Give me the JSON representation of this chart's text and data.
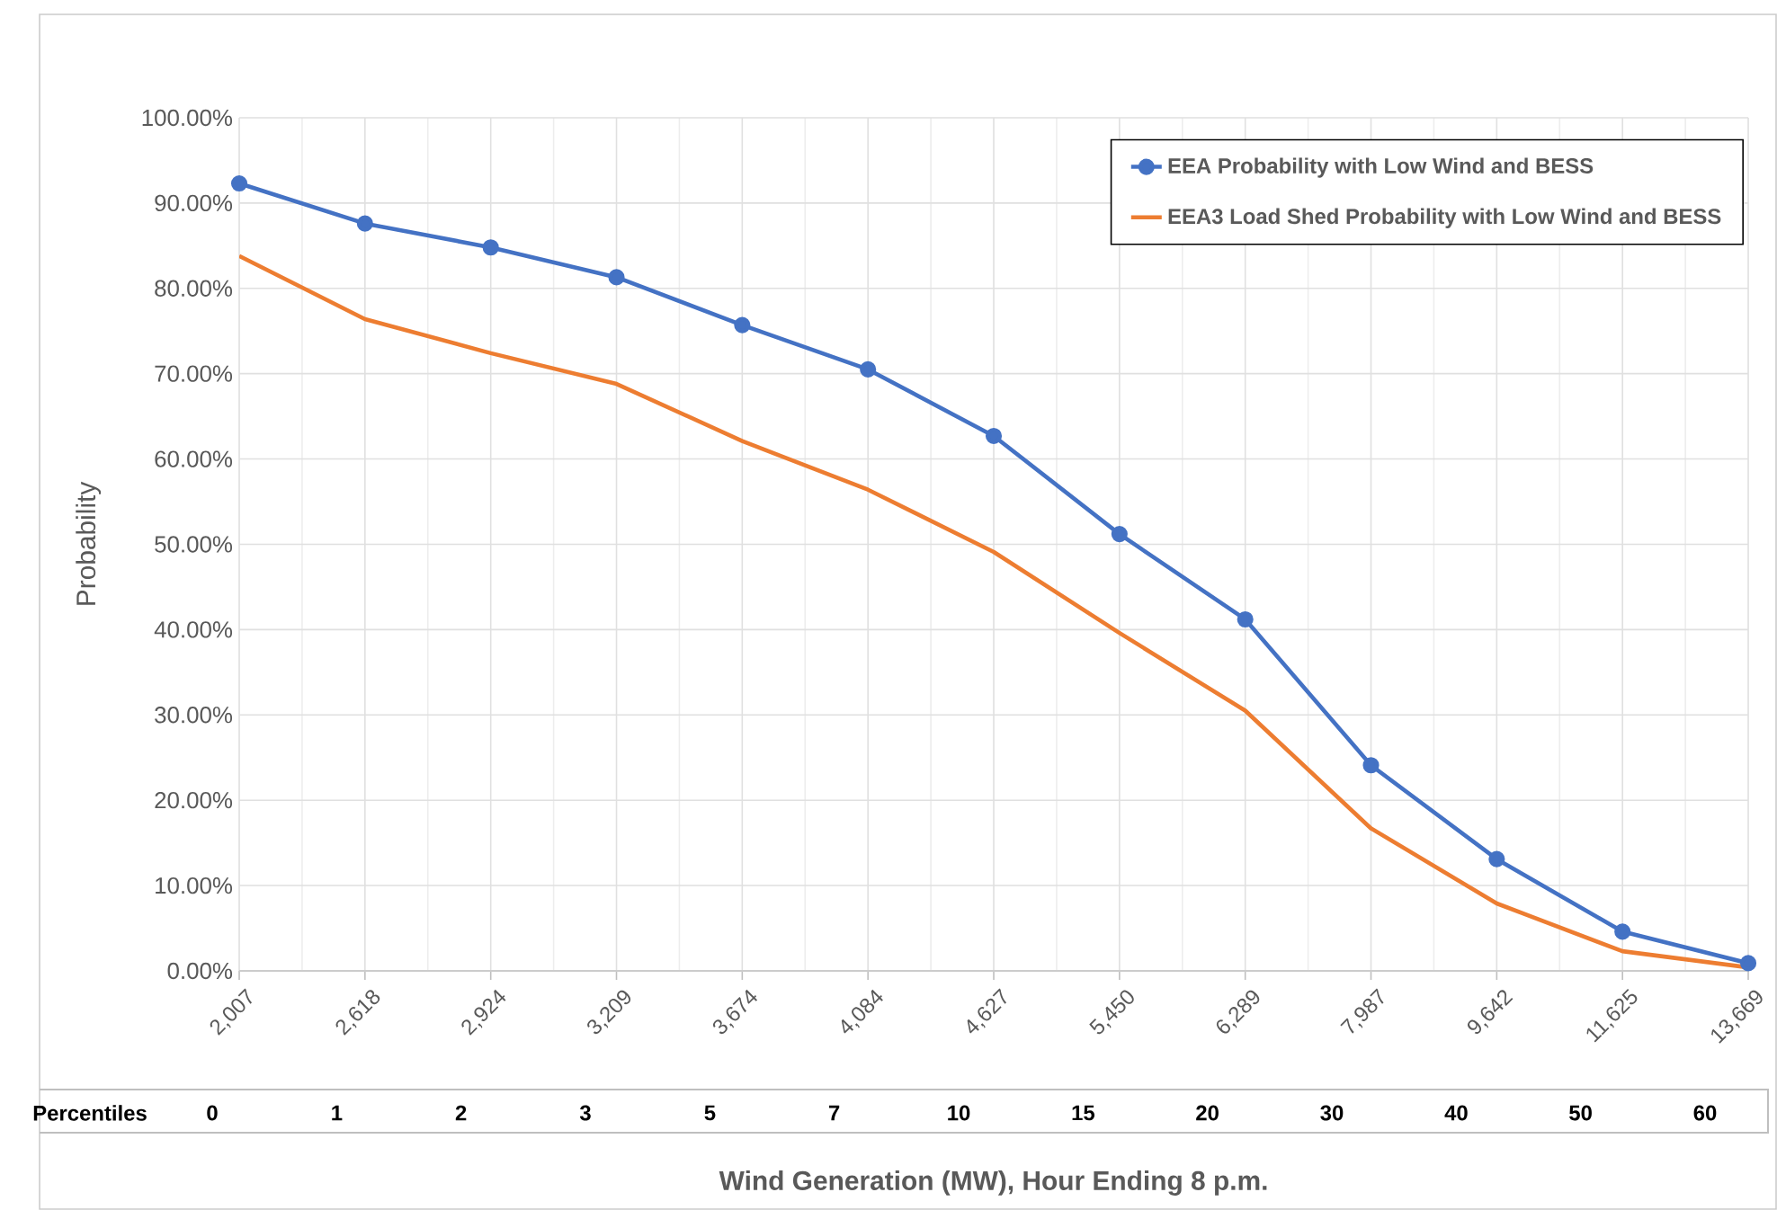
{
  "chart_data": {
    "type": "line",
    "xlabel": "Wind Generation (MW), Hour Ending 8 p.m.",
    "ylabel": "Probability",
    "categories": [
      "2,007",
      "2,618",
      "2,924",
      "3,209",
      "3,674",
      "4,084",
      "4,627",
      "5,450",
      "6,289",
      "7,987",
      "9,642",
      "11,625",
      "13,669"
    ],
    "series": [
      {
        "name": "EEA Probability with Low Wind and BESS",
        "color": "#4472c4",
        "marker": "circle",
        "values": [
          92.3,
          87.6,
          84.8,
          81.3,
          75.7,
          70.5,
          62.7,
          51.2,
          41.2,
          24.1,
          13.1,
          4.6,
          0.9
        ]
      },
      {
        "name": "EEA3 Load Shed Probability with Low Wind and BESS",
        "color": "#ed7d31",
        "marker": "none",
        "values": [
          83.8,
          76.4,
          72.4,
          68.8,
          62.1,
          56.4,
          49.1,
          39.6,
          30.5,
          16.7,
          7.9,
          2.3,
          0.4
        ]
      }
    ],
    "ylim": [
      0,
      100
    ],
    "yticks": [
      {
        "value": 0,
        "label": "0.00%"
      },
      {
        "value": 10,
        "label": "10.00%"
      },
      {
        "value": 20,
        "label": "20.00%"
      },
      {
        "value": 30,
        "label": "30.00%"
      },
      {
        "value": 40,
        "label": "40.00%"
      },
      {
        "value": 50,
        "label": "50.00%"
      },
      {
        "value": 60,
        "label": "60.00%"
      },
      {
        "value": 70,
        "label": "70.00%"
      },
      {
        "value": 80,
        "label": "80.00%"
      },
      {
        "value": 90,
        "label": "90.00%"
      },
      {
        "value": 100,
        "label": "100.00%"
      }
    ],
    "grid": true,
    "legend": "top right",
    "line_style": "solid",
    "annotations": [
      "Percentiles",
      "0",
      "1",
      "2",
      "3",
      "5",
      "7",
      "10",
      "15",
      "20",
      "30",
      "40",
      "50",
      "60"
    ]
  }
}
